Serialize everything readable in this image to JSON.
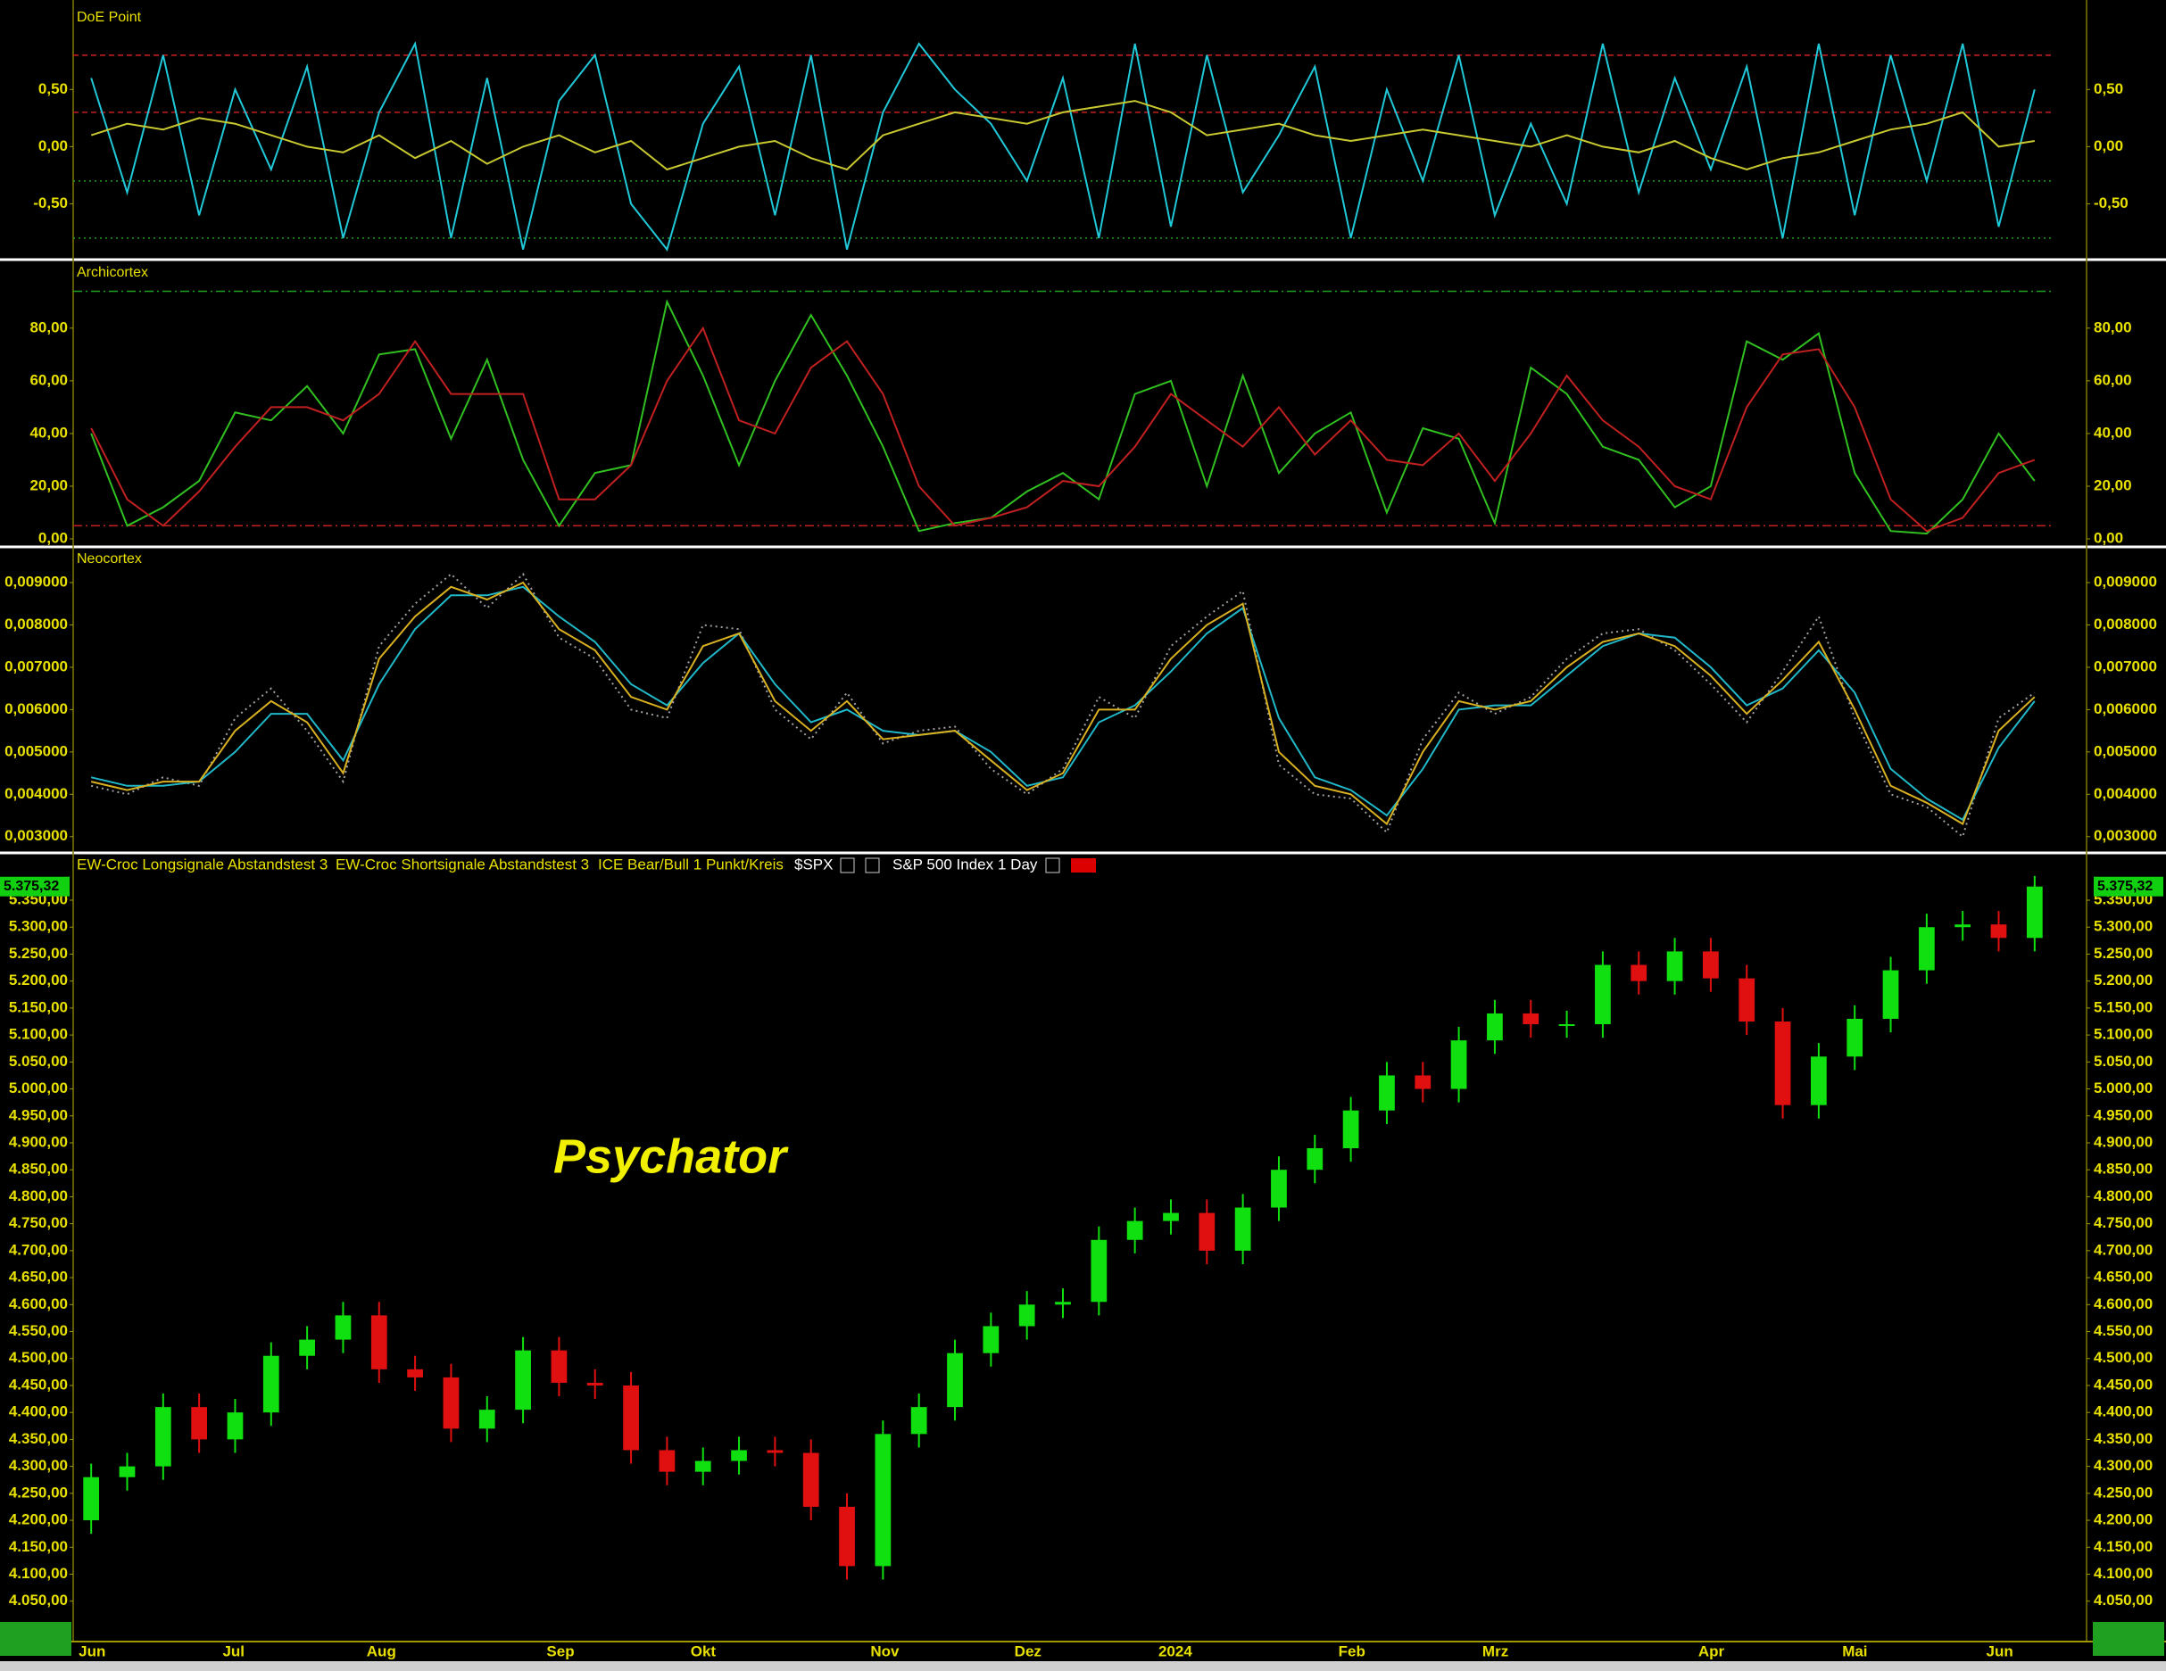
{
  "chart_data": [
    {
      "type": "line",
      "title": "DoE Point",
      "ylim": [
        -0.98,
        1.22
      ],
      "yticks": [
        {
          "value": 0.5,
          "label": "0,50"
        },
        {
          "value": 0,
          "label": "0,00"
        },
        {
          "value": -0.5,
          "label": "-0,50"
        }
      ],
      "reference_lines": [
        {
          "value": 0.8,
          "color": "#d02020",
          "style": "dashed"
        },
        {
          "value": 0.3,
          "color": "#c02020",
          "style": "dashed"
        },
        {
          "value": -0.3,
          "color": "#20a020",
          "style": "dotted"
        },
        {
          "value": -0.8,
          "color": "#20a020",
          "style": "dotted"
        }
      ],
      "series": [
        {
          "color": "#20c8d8",
          "values": [
            0.6,
            -0.4,
            0.8,
            -0.6,
            0.5,
            -0.2,
            0.7,
            -0.8,
            0.3,
            0.9,
            -0.8,
            0.6,
            -0.9,
            0.4,
            0.8,
            -0.5,
            -0.9,
            0.2,
            0.7,
            -0.6,
            0.8,
            -0.9,
            0.3,
            0.9,
            0.5,
            0.2,
            -0.3,
            0.6,
            -0.8,
            0.9,
            -0.7,
            0.8,
            -0.4,
            0.1,
            0.7,
            -0.8,
            0.5,
            -0.3,
            0.8,
            -0.6,
            0.2,
            -0.5,
            0.9,
            -0.4,
            0.6,
            -0.2,
            0.7,
            -0.8,
            0.9,
            -0.6,
            0.8,
            -0.3,
            0.9,
            -0.7,
            0.5
          ]
        },
        {
          "color": "#c8c830",
          "values": [
            0.1,
            0.2,
            0.15,
            0.25,
            0.2,
            0.1,
            0.0,
            -0.05,
            0.1,
            -0.1,
            0.05,
            -0.15,
            0.0,
            0.1,
            -0.05,
            0.05,
            -0.2,
            -0.1,
            0.0,
            0.05,
            -0.1,
            -0.2,
            0.1,
            0.2,
            0.3,
            0.25,
            0.2,
            0.3,
            0.35,
            0.4,
            0.3,
            0.1,
            0.15,
            0.2,
            0.1,
            0.05,
            0.1,
            0.15,
            0.1,
            0.05,
            0.0,
            0.1,
            0.0,
            -0.05,
            0.05,
            -0.1,
            -0.2,
            -0.1,
            -0.05,
            0.05,
            0.15,
            0.2,
            0.3,
            0.0,
            0.05
          ]
        }
      ]
    },
    {
      "type": "line",
      "title": "Archicortex",
      "ylim": [
        -2.7,
        105
      ],
      "yticks": [
        {
          "value": 80,
          "label": "80,00"
        },
        {
          "value": 60,
          "label": "60,00"
        },
        {
          "value": 40,
          "label": "40,00"
        },
        {
          "value": 20,
          "label": "20,00"
        },
        {
          "value": 0,
          "label": "0,00"
        }
      ],
      "reference_lines": [
        {
          "value": 94,
          "color": "#20a020",
          "style": "dashdot"
        },
        {
          "value": 5,
          "color": "#c02020",
          "style": "dashdot"
        }
      ],
      "series": [
        {
          "color": "#30c020",
          "values": [
            40,
            5,
            12,
            22,
            48,
            45,
            58,
            40,
            70,
            72,
            38,
            68,
            30,
            5,
            25,
            28,
            90,
            62,
            28,
            60,
            85,
            62,
            35,
            3,
            6,
            8,
            18,
            25,
            15,
            55,
            60,
            20,
            62,
            25,
            40,
            48,
            10,
            42,
            38,
            6,
            65,
            55,
            35,
            30,
            12,
            20,
            75,
            68,
            78,
            25,
            3,
            2,
            15,
            40,
            22
          ]
        },
        {
          "color": "#c02020",
          "values": [
            42,
            15,
            5,
            18,
            35,
            50,
            50,
            45,
            55,
            75,
            55,
            55,
            55,
            15,
            15,
            28,
            60,
            80,
            45,
            40,
            65,
            75,
            55,
            20,
            5,
            8,
            12,
            22,
            20,
            35,
            55,
            45,
            35,
            50,
            32,
            45,
            30,
            28,
            40,
            22,
            40,
            62,
            45,
            35,
            20,
            15,
            50,
            70,
            72,
            50,
            15,
            3,
            8,
            25,
            30
          ]
        }
      ]
    },
    {
      "type": "line",
      "title": "Neocortex",
      "ylim": [
        0.0027,
        0.00978
      ],
      "yticks": [
        {
          "value": 0.009,
          "label": "0,009000"
        },
        {
          "value": 0.008,
          "label": "0,008000"
        },
        {
          "value": 0.007,
          "label": "0,007000"
        },
        {
          "value": 0.006,
          "label": "0,006000"
        },
        {
          "value": 0.005,
          "label": "0,005000"
        },
        {
          "value": 0.004,
          "label": "0,004000"
        },
        {
          "value": 0.003,
          "label": "0,003000"
        }
      ],
      "series": [
        {
          "color": "#a0a0a0",
          "style": "dotted",
          "values": [
            0.0042,
            0.004,
            0.0044,
            0.0042,
            0.0058,
            0.0065,
            0.0055,
            0.0043,
            0.0075,
            0.0085,
            0.0092,
            0.0084,
            0.0092,
            0.0077,
            0.0072,
            0.006,
            0.0058,
            0.008,
            0.0079,
            0.006,
            0.0053,
            0.0064,
            0.0052,
            0.0055,
            0.0056,
            0.0046,
            0.004,
            0.0046,
            0.0063,
            0.0058,
            0.0075,
            0.0082,
            0.0088,
            0.0047,
            0.004,
            0.0039,
            0.0031,
            0.0053,
            0.0064,
            0.0059,
            0.0063,
            0.0072,
            0.0078,
            0.0079,
            0.0074,
            0.0066,
            0.0057,
            0.0069,
            0.0082,
            0.0058,
            0.004,
            0.0037,
            0.003,
            0.0058,
            0.0064
          ]
        },
        {
          "color": "#20b8c8",
          "values": [
            0.0044,
            0.0042,
            0.0042,
            0.0043,
            0.005,
            0.0059,
            0.0059,
            0.0048,
            0.0066,
            0.0079,
            0.0087,
            0.0087,
            0.0089,
            0.0082,
            0.0076,
            0.0066,
            0.0061,
            0.0071,
            0.0078,
            0.0066,
            0.0057,
            0.006,
            0.0055,
            0.0054,
            0.0055,
            0.005,
            0.0042,
            0.0044,
            0.0057,
            0.0061,
            0.0069,
            0.0078,
            0.0084,
            0.0058,
            0.0044,
            0.0041,
            0.0035,
            0.0046,
            0.006,
            0.0061,
            0.0061,
            0.0068,
            0.0075,
            0.0078,
            0.0077,
            0.007,
            0.0061,
            0.0065,
            0.0074,
            0.0064,
            0.0046,
            0.0039,
            0.0034,
            0.0051,
            0.0062
          ]
        },
        {
          "color": "#d8b020",
          "values": [
            0.0043,
            0.0041,
            0.0043,
            0.0043,
            0.0055,
            0.0062,
            0.0057,
            0.0045,
            0.0072,
            0.0082,
            0.0089,
            0.0086,
            0.009,
            0.0079,
            0.0074,
            0.0063,
            0.006,
            0.0075,
            0.0078,
            0.0062,
            0.0055,
            0.0062,
            0.0053,
            0.0054,
            0.0055,
            0.0048,
            0.0041,
            0.0045,
            0.006,
            0.006,
            0.0072,
            0.008,
            0.0085,
            0.005,
            0.0042,
            0.004,
            0.0033,
            0.005,
            0.0062,
            0.006,
            0.0062,
            0.007,
            0.0076,
            0.0078,
            0.0075,
            0.0068,
            0.0059,
            0.0067,
            0.0076,
            0.006,
            0.0042,
            0.0038,
            0.0033,
            0.0055,
            0.0063
          ]
        }
      ]
    },
    {
      "type": "candlestick",
      "legend": [
        "EW-Croc Longsignale Abstandstest 3",
        "EW-Croc Shortsignale Abstandstest 3",
        "ICE Bear/Bull 1 Punkt/Kreis"
      ],
      "symbol": "$SPX",
      "instrument": "S&P 500 Index",
      "interval": "1 Day",
      "annotation": "Psychator",
      "last_value_label": "5.375,32",
      "up_color": "#10e010",
      "down_color": "#e01010",
      "ylim": [
        3985,
        5398
      ],
      "yticks": [
        {
          "value": 4050,
          "label": "4.050,00"
        },
        {
          "value": 4100,
          "label": "4.100,00"
        },
        {
          "value": 4150,
          "label": "4.150,00"
        },
        {
          "value": 4200,
          "label": "4.200,00"
        },
        {
          "value": 4250,
          "label": "4.250,00"
        },
        {
          "value": 4300,
          "label": "4.300,00"
        },
        {
          "value": 4350,
          "label": "4.350,00"
        },
        {
          "value": 4400,
          "label": "4.400,00"
        },
        {
          "value": 4450,
          "label": "4.450,00"
        },
        {
          "value": 4500,
          "label": "4.500,00"
        },
        {
          "value": 4550,
          "label": "4.550,00"
        },
        {
          "value": 4600,
          "label": "4.600,00"
        },
        {
          "value": 4650,
          "label": "4.650,00"
        },
        {
          "value": 4700,
          "label": "4.700,00"
        },
        {
          "value": 4750,
          "label": "4.750,00"
        },
        {
          "value": 4800,
          "label": "4.800,00"
        },
        {
          "value": 4850,
          "label": "4.850,00"
        },
        {
          "value": 4900,
          "label": "4.900,00"
        },
        {
          "value": 4950,
          "label": "4.950,00"
        },
        {
          "value": 5000,
          "label": "5.000,00"
        },
        {
          "value": 5050,
          "label": "5.050,00"
        },
        {
          "value": 5100,
          "label": "5.100,00"
        },
        {
          "value": 5150,
          "label": "5.150,00"
        },
        {
          "value": 5200,
          "label": "5.200,00"
        },
        {
          "value": 5250,
          "label": "5.250,00"
        },
        {
          "value": 5300,
          "label": "5.300,00"
        },
        {
          "value": 5350,
          "label": "5.350,00"
        }
      ],
      "categories": [
        "Jun",
        null,
        null,
        null,
        "Jul",
        null,
        null,
        null,
        "Aug",
        null,
        null,
        null,
        null,
        "Sep",
        null,
        null,
        null,
        "Okt",
        null,
        null,
        null,
        null,
        "Nov",
        null,
        null,
        null,
        "Dez",
        null,
        null,
        null,
        "2024",
        null,
        null,
        null,
        null,
        "Feb",
        null,
        null,
        null,
        "Mrz",
        null,
        null,
        null,
        null,
        null,
        "Apr",
        null,
        null,
        null,
        "Mai",
        null,
        null,
        null,
        "Jun",
        null
      ],
      "open": [
        4200,
        4280,
        4300,
        4410,
        4350,
        4400,
        4505,
        4535,
        4580,
        4480,
        4465,
        4370,
        4405,
        4515,
        4455,
        4450,
        4330,
        4290,
        4310,
        4330,
        4325,
        4225,
        4115,
        4360,
        4410,
        4510,
        4560,
        4600,
        4605,
        4720,
        4755,
        4770,
        4700,
        4780,
        4850,
        4890,
        4960,
        5025,
        5000,
        5090,
        5140,
        5120,
        5120,
        5230,
        5200,
        5255,
        5205,
        5125,
        4970,
        5060,
        5130,
        5220,
        5300,
        5305,
        5280
      ],
      "high": [
        4305,
        4325,
        4435,
        4435,
        4425,
        4530,
        4560,
        4605,
        4605,
        4505,
        4490,
        4430,
        4540,
        4540,
        4480,
        4475,
        4355,
        4335,
        4355,
        4355,
        4350,
        4250,
        4385,
        4435,
        4535,
        4585,
        4625,
        4630,
        4745,
        4780,
        4795,
        4795,
        4805,
        4875,
        4915,
        4985,
        5050,
        5050,
        5115,
        5165,
        5165,
        5145,
        5255,
        5255,
        5280,
        5280,
        5230,
        5150,
        5085,
        5155,
        5245,
        5325,
        5330,
        5330,
        5395
      ],
      "low": [
        4175,
        4255,
        4275,
        4325,
        4325,
        4375,
        4480,
        4510,
        4455,
        4440,
        4345,
        4345,
        4380,
        4430,
        4425,
        4305,
        4265,
        4265,
        4285,
        4300,
        4200,
        4090,
        4090,
        4335,
        4385,
        4485,
        4535,
        4575,
        4580,
        4695,
        4730,
        4675,
        4675,
        4755,
        4825,
        4865,
        4935,
        4975,
        4975,
        5065,
        5095,
        5095,
        5095,
        5175,
        5175,
        5180,
        5100,
        4945,
        4945,
        5035,
        5105,
        5195,
        5275,
        5255,
        5255
      ],
      "close": [
        4280,
        4300,
        4410,
        4350,
        4400,
        4505,
        4535,
        4580,
        4480,
        4465,
        4370,
        4405,
        4515,
        4455,
        4450,
        4330,
        4290,
        4310,
        4330,
        4325,
        4225,
        4115,
        4360,
        4410,
        4510,
        4560,
        4600,
        4605,
        4720,
        4755,
        4770,
        4700,
        4780,
        4850,
        4890,
        4960,
        5025,
        5000,
        5090,
        5140,
        5120,
        5120,
        5230,
        5200,
        5255,
        5205,
        5125,
        4970,
        5060,
        5130,
        5220,
        5300,
        5305,
        5280,
        5375.32
      ]
    }
  ]
}
